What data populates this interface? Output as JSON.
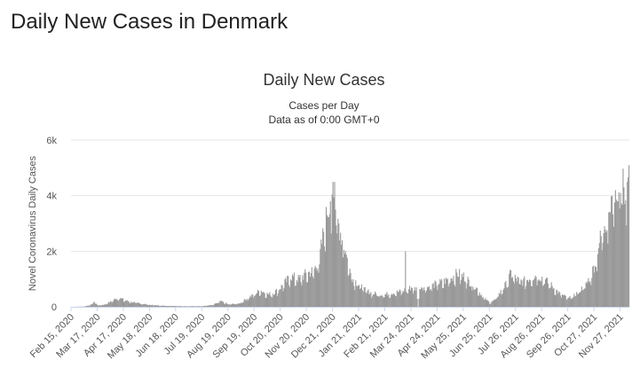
{
  "page": {
    "heading": "Daily New Cases in Denmark"
  },
  "chart_data": {
    "type": "bar",
    "title": "Daily New Cases",
    "subtitle": "Cases per Day",
    "subtitle2": "Data as of 0:00 GMT+0",
    "xlabel": "",
    "ylabel": "Novel Coronavirus Daily Cases",
    "ylim": [
      0,
      6000
    ],
    "yticks": [
      0,
      2000,
      4000,
      6000
    ],
    "ytick_labels": [
      "0",
      "2k",
      "4k",
      "6k"
    ],
    "xlim": [
      "2020-02-15",
      "2021-12-08"
    ],
    "xtick_labels": [
      "Feb 15, 2020",
      "Mar 17, 2020",
      "Apr 17, 2020",
      "May 18, 2020",
      "Jun 18, 2020",
      "Jul 19, 2020",
      "Aug 19, 2020",
      "Sep 19, 2020",
      "Oct 20, 2020",
      "Nov 20, 2020",
      "Dec 21, 2020",
      "Jan 21, 2021",
      "Feb 21, 2021",
      "Mar 24, 2021",
      "Apr 24, 2021",
      "May 25, 2021",
      "Jun 25, 2021",
      "Jul 26, 2021",
      "Aug 26, 2021",
      "Sep 26, 2021",
      "Oct 27, 2021",
      "Nov 27, 2021"
    ],
    "xtick_dates": [
      "2020-02-15",
      "2020-03-17",
      "2020-04-17",
      "2020-05-18",
      "2020-06-18",
      "2020-07-19",
      "2020-08-19",
      "2020-09-19",
      "2020-10-20",
      "2020-11-20",
      "2020-12-21",
      "2021-01-21",
      "2021-02-21",
      "2021-03-24",
      "2021-04-24",
      "2021-05-25",
      "2021-06-25",
      "2021-07-26",
      "2021-08-26",
      "2021-09-26",
      "2021-10-27",
      "2021-11-27"
    ],
    "grid": true,
    "bar_color": "#999999",
    "series": [
      {
        "values": [
          [
            "2020-02-15",
            0
          ],
          [
            "2020-03-01",
            10
          ],
          [
            "2020-03-10",
            80
          ],
          [
            "2020-03-13",
            200
          ],
          [
            "2020-03-17",
            50
          ],
          [
            "2020-03-25",
            80
          ],
          [
            "2020-04-01",
            180
          ],
          [
            "2020-04-08",
            300
          ],
          [
            "2020-04-12",
            330
          ],
          [
            "2020-04-17",
            250
          ],
          [
            "2020-04-25",
            180
          ],
          [
            "2020-05-05",
            130
          ],
          [
            "2020-05-18",
            70
          ],
          [
            "2020-06-01",
            40
          ],
          [
            "2020-06-18",
            30
          ],
          [
            "2020-07-01",
            20
          ],
          [
            "2020-07-19",
            25
          ],
          [
            "2020-08-01",
            70
          ],
          [
            "2020-08-10",
            200
          ],
          [
            "2020-08-19",
            90
          ],
          [
            "2020-09-01",
            120
          ],
          [
            "2020-09-10",
            300
          ],
          [
            "2020-09-19",
            450
          ],
          [
            "2020-09-26",
            600
          ],
          [
            "2020-10-05",
            450
          ],
          [
            "2020-10-12",
            500
          ],
          [
            "2020-10-20",
            700
          ],
          [
            "2020-10-26",
            900
          ],
          [
            "2020-11-01",
            1100
          ],
          [
            "2020-11-10",
            1000
          ],
          [
            "2020-11-20",
            1200
          ],
          [
            "2020-11-28",
            1300
          ],
          [
            "2020-12-05",
            1700
          ],
          [
            "2020-12-10",
            2700
          ],
          [
            "2020-12-14",
            3300
          ],
          [
            "2020-12-18",
            3800
          ],
          [
            "2020-12-21",
            4500
          ],
          [
            "2020-12-24",
            3500
          ],
          [
            "2020-12-28",
            3000
          ],
          [
            "2021-01-01",
            2400
          ],
          [
            "2021-01-05",
            2000
          ],
          [
            "2021-01-10",
            1300
          ],
          [
            "2021-01-14",
            1000
          ],
          [
            "2021-01-21",
            800
          ],
          [
            "2021-01-28",
            600
          ],
          [
            "2021-02-05",
            500
          ],
          [
            "2021-02-13",
            450
          ],
          [
            "2021-02-21",
            450
          ],
          [
            "2021-03-01",
            500
          ],
          [
            "2021-03-10",
            550
          ],
          [
            "2021-03-16",
            600
          ],
          [
            "2021-03-17",
            2000
          ],
          [
            "2021-03-18",
            600
          ],
          [
            "2021-03-24",
            700
          ],
          [
            "2021-03-30",
            650
          ],
          [
            "2021-04-01",
            0
          ],
          [
            "2021-04-03",
            750
          ],
          [
            "2021-04-10",
            700
          ],
          [
            "2021-04-17",
            750
          ],
          [
            "2021-04-24",
            850
          ],
          [
            "2021-05-01",
            900
          ],
          [
            "2021-05-10",
            1050
          ],
          [
            "2021-05-18",
            1200
          ],
          [
            "2021-05-25",
            1100
          ],
          [
            "2021-06-01",
            900
          ],
          [
            "2021-06-10",
            650
          ],
          [
            "2021-06-17",
            350
          ],
          [
            "2021-06-25",
            150
          ],
          [
            "2021-07-01",
            250
          ],
          [
            "2021-07-08",
            550
          ],
          [
            "2021-07-14",
            800
          ],
          [
            "2021-07-20",
            1200
          ],
          [
            "2021-07-26",
            1000
          ],
          [
            "2021-08-03",
            900
          ],
          [
            "2021-08-12",
            1050
          ],
          [
            "2021-08-20",
            1150
          ],
          [
            "2021-08-26",
            1050
          ],
          [
            "2021-09-05",
            800
          ],
          [
            "2021-09-15",
            500
          ],
          [
            "2021-09-26",
            300
          ],
          [
            "2021-10-03",
            400
          ],
          [
            "2021-10-10",
            600
          ],
          [
            "2021-10-17",
            800
          ],
          [
            "2021-10-24",
            1200
          ],
          [
            "2021-10-27",
            1500
          ],
          [
            "2021-11-02",
            2300
          ],
          [
            "2021-11-08",
            2900
          ],
          [
            "2021-11-13",
            3400
          ],
          [
            "2021-11-17",
            4000
          ],
          [
            "2021-11-21",
            4200
          ],
          [
            "2021-11-24",
            3800
          ],
          [
            "2021-11-27",
            4100
          ],
          [
            "2021-12-01",
            4300
          ],
          [
            "2021-12-05",
            4500
          ],
          [
            "2021-12-07",
            5100
          ]
        ]
      }
    ]
  }
}
